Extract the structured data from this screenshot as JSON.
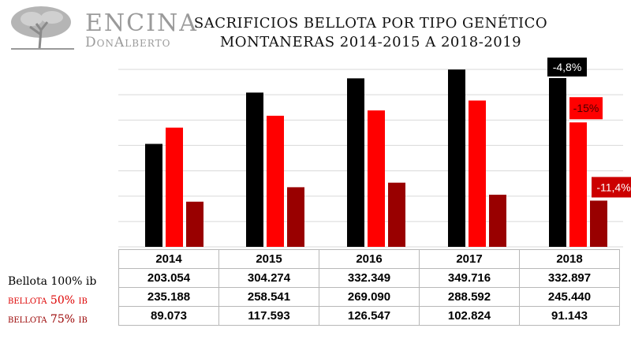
{
  "logo": {
    "line1": "ENCINA",
    "line2": "DonAlberto"
  },
  "title_line1": "SACRIFICIOS BELLOTA POR TIPO GENÉTICO",
  "title_line2": "MONTANERAS 2014-2015 A 2018-2019",
  "chart_data": {
    "type": "bar",
    "categories": [
      "2014",
      "2015",
      "2016",
      "2017",
      "2018"
    ],
    "series": [
      {
        "name": "Bellota 100% ib",
        "color": "#000000",
        "values": [
          203054,
          304274,
          332349,
          349716,
          332897
        ],
        "labels": [
          "203.054",
          "304.274",
          "332.349",
          "349.716",
          "332.897"
        ]
      },
      {
        "name": "bellota 50% ib",
        "color": "#ff0000",
        "values": [
          235188,
          258541,
          269090,
          288592,
          245440
        ],
        "labels": [
          "235.188",
          "258.541",
          "269.090",
          "288.592",
          "245.440"
        ]
      },
      {
        "name": "bellota 75% ib",
        "color": "#990000",
        "values": [
          89073,
          117593,
          126547,
          102824,
          91143
        ],
        "labels": [
          "89.073",
          "117.593",
          "126.547",
          "102.824",
          "91.143"
        ]
      }
    ],
    "ylim": [
      0,
      350000
    ],
    "grid": true,
    "annotations": [
      {
        "text": "-4,8%",
        "series": 0,
        "category": "2018"
      },
      {
        "text": "-15%",
        "series": 1,
        "category": "2018"
      },
      {
        "text": "-11,4%",
        "series": 2,
        "category": "2018"
      }
    ]
  }
}
